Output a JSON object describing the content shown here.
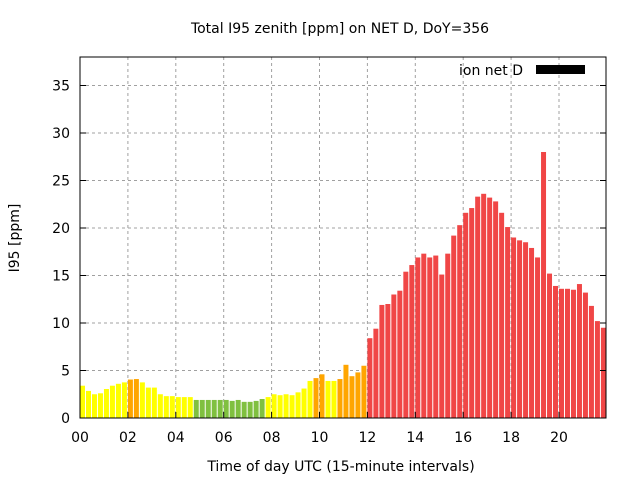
{
  "chart_data": {
    "type": "bar",
    "title": "Total I95 zenith [ppm] on NET D, DoY=356",
    "xlabel": "Time of day UTC (15-minute intervals)",
    "ylabel": "I95 [ppm]",
    "xlim": [
      0,
      22
    ],
    "ylim": [
      0,
      38
    ],
    "interval_hours": 0.25,
    "x_ticks": [
      0,
      2,
      4,
      6,
      8,
      10,
      12,
      14,
      16,
      18,
      20
    ],
    "x_tick_labels": [
      "00",
      "02",
      "04",
      "06",
      "08",
      "10",
      "12",
      "14",
      "16",
      "18",
      "20"
    ],
    "y_ticks": [
      0,
      5,
      10,
      15,
      20,
      25,
      30,
      35
    ],
    "y_tick_labels": [
      "0",
      "5",
      "10",
      "15",
      "20",
      "25",
      "30",
      "35"
    ],
    "grid": true,
    "legend": {
      "label": "ion net D",
      "placement": "top-right",
      "color": "#000000"
    },
    "color_levels": [
      {
        "max": 2.1,
        "color": "#80c040"
      },
      {
        "max": 4.0,
        "color": "#ffff00"
      },
      {
        "max": 8.0,
        "color": "#ffa500"
      },
      {
        "max": 1000,
        "color": "#f04646"
      }
    ],
    "values": [
      3.4,
      2.85,
      2.5,
      2.6,
      3.05,
      3.4,
      3.6,
      3.75,
      4.05,
      4.1,
      3.75,
      3.2,
      3.2,
      2.5,
      2.3,
      2.3,
      2.2,
      2.2,
      2.2,
      1.9,
      1.9,
      1.9,
      1.9,
      1.9,
      1.9,
      1.8,
      1.9,
      1.7,
      1.7,
      1.8,
      2.0,
      2.2,
      2.5,
      2.4,
      2.5,
      2.4,
      2.7,
      3.1,
      3.9,
      4.2,
      4.6,
      3.9,
      3.9,
      4.1,
      5.6,
      4.4,
      4.8,
      5.5,
      8.4,
      9.4,
      11.9,
      12.0,
      13.0,
      13.4,
      15.4,
      16.1,
      16.9,
      17.3,
      16.9,
      17.1,
      15.1,
      17.3,
      19.2,
      20.3,
      21.6,
      22.1,
      23.3,
      23.6,
      23.2,
      22.8,
      21.6,
      20.1,
      19.0,
      18.7,
      18.5,
      17.9,
      16.9,
      28.0,
      15.2,
      13.9,
      13.6,
      13.6,
      13.5,
      14.1,
      13.2,
      11.8,
      10.2,
      9.5
    ]
  }
}
